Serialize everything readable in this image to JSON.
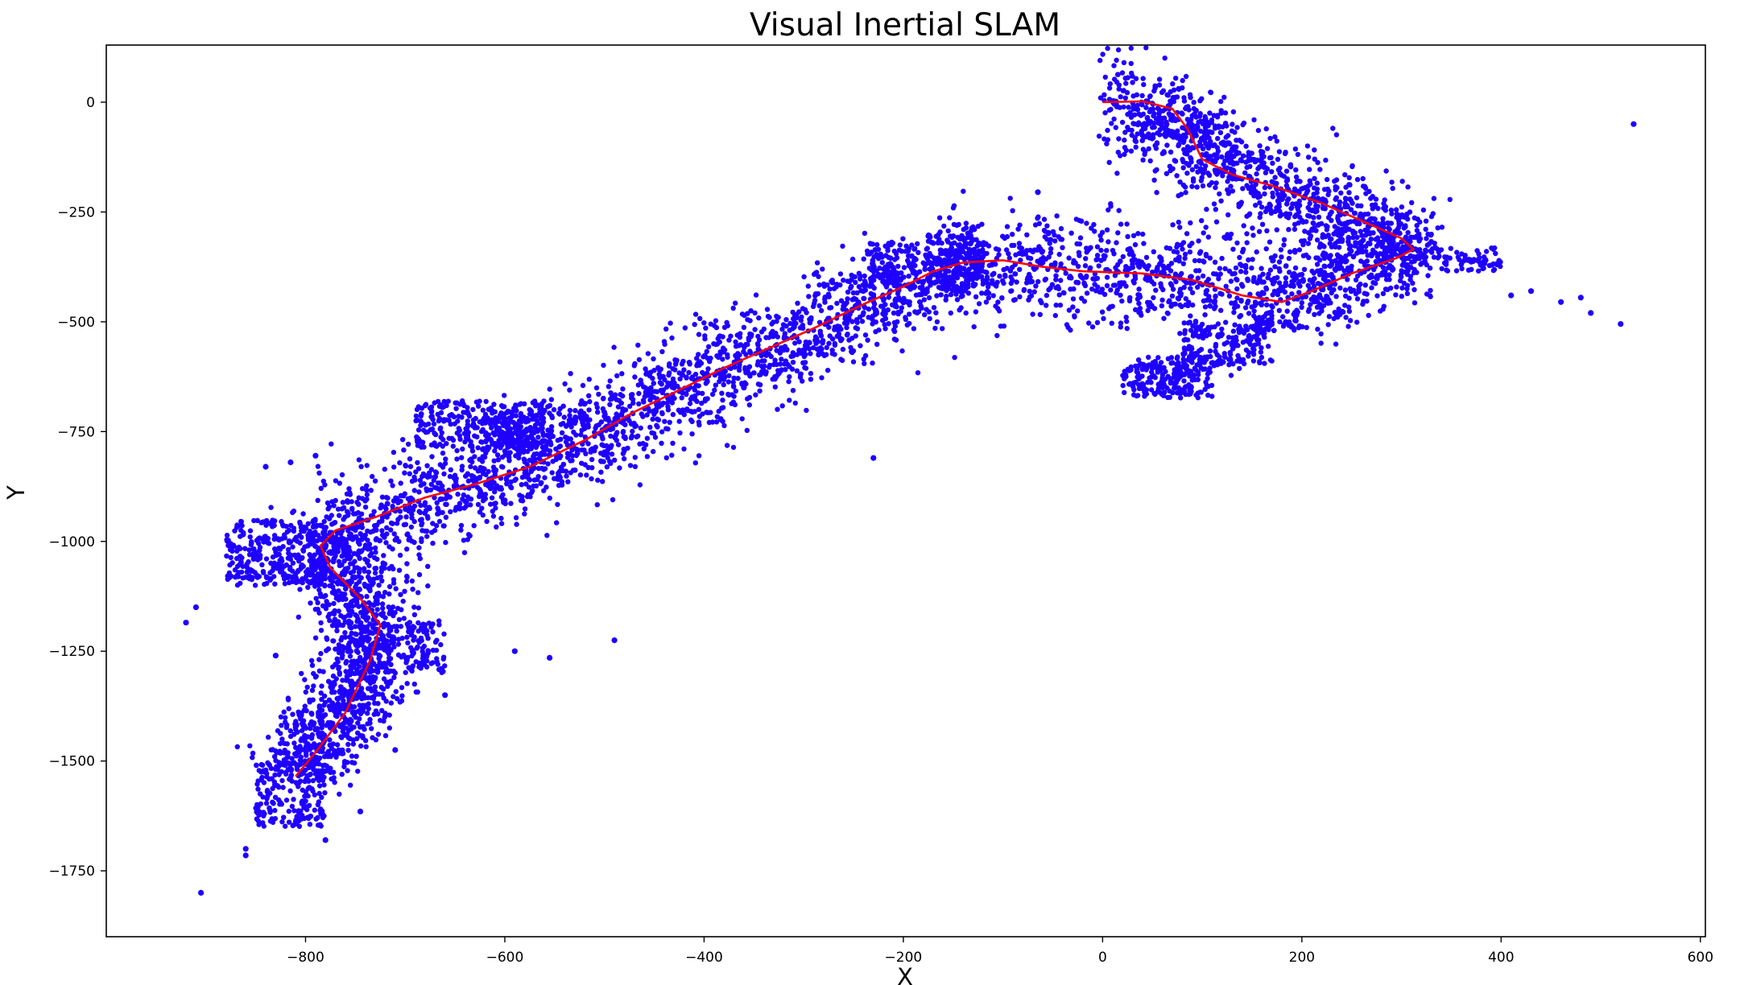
{
  "chart_data": {
    "type": "scatter",
    "title": "Visual Inertial SLAM",
    "xlabel": "X",
    "ylabel": "Y",
    "xlim": [
      -1000,
      605
    ],
    "ylim": [
      -1900,
      130
    ],
    "xticks": [
      -800,
      -600,
      -400,
      -200,
      0,
      200,
      400,
      600
    ],
    "yticks": [
      0,
      -250,
      -500,
      -750,
      -1000,
      -1250,
      -1500,
      -1750
    ],
    "xtick_labels": [
      "−800",
      "−600",
      "−400",
      "−200",
      "0",
      "200",
      "400",
      "600"
    ],
    "ytick_labels": [
      "0",
      "−250",
      "−500",
      "−750",
      "−1000",
      "−1250",
      "−1500",
      "−1750"
    ],
    "grid": false,
    "series": [
      {
        "kind": "scatter",
        "color": "#1f00ff",
        "trajectory": [
          [
            0,
            0
          ],
          [
            40,
            2
          ],
          [
            70,
            -15
          ],
          [
            95,
            -90
          ],
          [
            130,
            -160
          ],
          [
            200,
            -215
          ],
          [
            265,
            -285
          ],
          [
            310,
            -340
          ],
          [
            240,
            -385
          ],
          [
            180,
            -455
          ],
          [
            120,
            -435
          ],
          [
            40,
            -390
          ],
          [
            -60,
            -380
          ],
          [
            -110,
            -360
          ],
          [
            -165,
            -380
          ],
          [
            -225,
            -455
          ],
          [
            -290,
            -520
          ],
          [
            -330,
            -560
          ],
          [
            -420,
            -650
          ],
          [
            -490,
            -730
          ],
          [
            -575,
            -830
          ],
          [
            -665,
            -900
          ],
          [
            -770,
            -975
          ],
          [
            -785,
            -1015
          ],
          [
            -760,
            -1090
          ],
          [
            -725,
            -1190
          ],
          [
            -740,
            -1300
          ],
          [
            -770,
            -1420
          ],
          [
            -810,
            -1530
          ]
        ],
        "clusters": [
          {
            "x": [
              280,
              335
            ],
            "y": [
              -340,
              -300
            ]
          },
          {
            "x": [
              300,
              400
            ],
            "y": [
              -385,
              -330
            ]
          },
          {
            "x": [
              35,
              110
            ],
            "y": [
              -675,
              -580
            ]
          },
          {
            "x": [
              80,
              170
            ],
            "y": [
              -600,
              -500
            ]
          },
          {
            "x": [
              20,
              90
            ],
            "y": [
              -670,
              -600
            ]
          },
          {
            "x": [
              150,
              200
            ],
            "y": [
              -520,
              -480
            ]
          },
          {
            "x": [
              -235,
              -185
            ],
            "y": [
              -415,
              -320
            ]
          },
          {
            "x": [
              -180,
              -115
            ],
            "y": [
              -420,
              -300
            ]
          },
          {
            "x": [
              -160,
              -120
            ],
            "y": [
              -400,
              -320
            ]
          },
          {
            "x": [
              -690,
              -560
            ],
            "y": [
              -790,
              -680
            ]
          },
          {
            "x": [
              -540,
              -510
            ],
            "y": [
              -740,
              -715
            ]
          },
          {
            "x": [
              -620,
              -560
            ],
            "y": [
              -790,
              -700
            ]
          },
          {
            "x": [
              -880,
              -780
            ],
            "y": [
              -1100,
              -950
            ]
          },
          {
            "x": [
              -700,
              -660
            ],
            "y": [
              -1300,
              -1180
            ]
          },
          {
            "x": [
              -850,
              -780
            ],
            "y": [
              -1650,
              -1500
            ]
          }
        ],
        "outliers": [
          [
            533,
            -50
          ],
          [
            520,
            -505
          ],
          [
            490,
            -480
          ],
          [
            480,
            -445
          ],
          [
            460,
            -455
          ],
          [
            430,
            -430
          ],
          [
            410,
            -440
          ],
          [
            -65,
            -205
          ],
          [
            -230,
            -810
          ],
          [
            -490,
            -1225
          ],
          [
            -555,
            -1265
          ],
          [
            -590,
            -1250
          ],
          [
            -660,
            -1350
          ],
          [
            -710,
            -1475
          ],
          [
            -905,
            -1800
          ],
          [
            -860,
            -1715
          ],
          [
            -860,
            -1700
          ],
          [
            -920,
            -1185
          ],
          [
            -910,
            -1150
          ],
          [
            -830,
            -1260
          ],
          [
            -840,
            -830
          ],
          [
            -815,
            -820
          ],
          [
            -790,
            -805
          ],
          [
            -745,
            -1615
          ],
          [
            -780,
            -1680
          ],
          [
            -210,
            -385
          ],
          [
            -230,
            -405
          ],
          [
            -360,
            -650
          ]
        ]
      },
      {
        "kind": "line",
        "color": "#ff0000",
        "x": [
          0,
          40,
          70,
          85,
          100,
          130,
          170,
          220,
          265,
          300,
          312,
          295,
          250,
          210,
          180,
          140,
          90,
          40,
          -20,
          -60,
          -100,
          -140,
          -170,
          -200,
          -240,
          -290,
          -330,
          -380,
          -420,
          -470,
          -520,
          -575,
          -630,
          -680,
          -730,
          -770,
          -785,
          -775,
          -745,
          -725,
          -735,
          -760,
          -790,
          -810
        ],
        "y": [
          0,
          2,
          -15,
          -60,
          -130,
          -165,
          -190,
          -230,
          -275,
          -310,
          -335,
          -355,
          -390,
          -430,
          -455,
          -440,
          -405,
          -390,
          -385,
          -375,
          -360,
          -365,
          -385,
          -420,
          -460,
          -515,
          -555,
          -605,
          -650,
          -705,
          -770,
          -830,
          -870,
          -900,
          -945,
          -975,
          -1010,
          -1060,
          -1130,
          -1190,
          -1270,
          -1390,
          -1480,
          -1535
        ]
      }
    ]
  }
}
